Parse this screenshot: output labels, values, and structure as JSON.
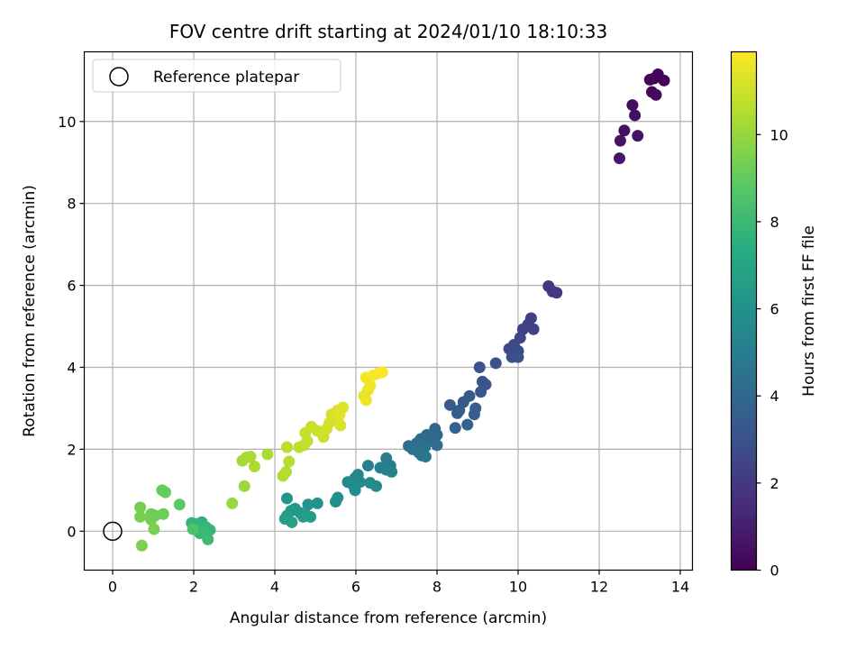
{
  "chart_data": {
    "type": "scatter",
    "title": "FOV centre drift starting at 2024/01/10 18:10:33",
    "xlabel": "Angular distance from reference (arcmin)",
    "ylabel": "Rotation from reference (arcmin)",
    "xlim": [
      -0.7,
      14.3
    ],
    "ylim": [
      -0.95,
      11.7
    ],
    "xticks": [
      0,
      2,
      4,
      6,
      8,
      10,
      12,
      14
    ],
    "yticks": [
      0,
      2,
      4,
      6,
      8,
      10
    ],
    "grid": true,
    "legend": {
      "placement": "top-left",
      "entries": [
        "Reference platepar"
      ]
    },
    "reference_point": {
      "x": 0,
      "y": 0
    },
    "colorbar": {
      "label": "Hours from first FF file",
      "colormap": "viridis",
      "range": [
        0,
        11.9
      ],
      "ticks": [
        0,
        2,
        4,
        6,
        8,
        10
      ]
    },
    "points": [
      {
        "x": 13.35,
        "y": 11.05,
        "c": 0.05
      },
      {
        "x": 13.45,
        "y": 11.15,
        "c": 0.1
      },
      {
        "x": 13.6,
        "y": 11.0,
        "c": 0.15
      },
      {
        "x": 13.25,
        "y": 11.02,
        "c": 0.2
      },
      {
        "x": 13.3,
        "y": 10.72,
        "c": 0.25
      },
      {
        "x": 13.4,
        "y": 10.65,
        "c": 0.3
      },
      {
        "x": 12.82,
        "y": 10.4,
        "c": 0.4
      },
      {
        "x": 12.88,
        "y": 10.15,
        "c": 0.45
      },
      {
        "x": 12.62,
        "y": 9.78,
        "c": 0.55
      },
      {
        "x": 12.95,
        "y": 9.65,
        "c": 0.6
      },
      {
        "x": 12.52,
        "y": 9.53,
        "c": 0.65
      },
      {
        "x": 12.5,
        "y": 9.1,
        "c": 0.75
      },
      {
        "x": 10.75,
        "y": 5.98,
        "c": 1.9
      },
      {
        "x": 10.85,
        "y": 5.85,
        "c": 1.95
      },
      {
        "x": 10.95,
        "y": 5.82,
        "c": 2.0
      },
      {
        "x": 10.32,
        "y": 5.2,
        "c": 2.2
      },
      {
        "x": 10.25,
        "y": 5.05,
        "c": 2.3
      },
      {
        "x": 10.12,
        "y": 4.93,
        "c": 2.35
      },
      {
        "x": 10.38,
        "y": 4.93,
        "c": 2.4
      },
      {
        "x": 10.05,
        "y": 4.72,
        "c": 2.5
      },
      {
        "x": 9.9,
        "y": 4.55,
        "c": 2.6
      },
      {
        "x": 9.78,
        "y": 4.45,
        "c": 2.65
      },
      {
        "x": 10.0,
        "y": 4.4,
        "c": 2.7
      },
      {
        "x": 9.85,
        "y": 4.25,
        "c": 2.8
      },
      {
        "x": 10.0,
        "y": 4.25,
        "c": 2.85
      },
      {
        "x": 9.45,
        "y": 4.1,
        "c": 2.95
      },
      {
        "x": 9.05,
        "y": 4.0,
        "c": 3.0
      },
      {
        "x": 9.12,
        "y": 3.65,
        "c": 3.1
      },
      {
        "x": 9.2,
        "y": 3.58,
        "c": 3.15
      },
      {
        "x": 9.08,
        "y": 3.4,
        "c": 3.2
      },
      {
        "x": 8.8,
        "y": 3.3,
        "c": 3.3
      },
      {
        "x": 8.65,
        "y": 3.15,
        "c": 3.35
      },
      {
        "x": 8.32,
        "y": 3.08,
        "c": 3.4
      },
      {
        "x": 8.55,
        "y": 2.95,
        "c": 3.45
      },
      {
        "x": 8.95,
        "y": 3.0,
        "c": 3.5
      },
      {
        "x": 8.5,
        "y": 2.88,
        "c": 3.55
      },
      {
        "x": 8.92,
        "y": 2.85,
        "c": 3.6
      },
      {
        "x": 8.75,
        "y": 2.6,
        "c": 3.7
      },
      {
        "x": 8.45,
        "y": 2.52,
        "c": 3.8
      },
      {
        "x": 7.95,
        "y": 2.5,
        "c": 3.9
      },
      {
        "x": 8.0,
        "y": 2.35,
        "c": 3.95
      },
      {
        "x": 7.75,
        "y": 2.35,
        "c": 4.0
      },
      {
        "x": 7.6,
        "y": 2.25,
        "c": 4.1
      },
      {
        "x": 7.85,
        "y": 2.2,
        "c": 4.15
      },
      {
        "x": 7.5,
        "y": 2.15,
        "c": 4.2
      },
      {
        "x": 8.0,
        "y": 2.1,
        "c": 4.25
      },
      {
        "x": 7.3,
        "y": 2.08,
        "c": 4.3
      },
      {
        "x": 7.7,
        "y": 2.05,
        "c": 4.35
      },
      {
        "x": 7.4,
        "y": 2.0,
        "c": 4.4
      },
      {
        "x": 7.55,
        "y": 1.92,
        "c": 4.5
      },
      {
        "x": 7.62,
        "y": 1.85,
        "c": 4.55
      },
      {
        "x": 7.72,
        "y": 1.82,
        "c": 4.6
      },
      {
        "x": 6.75,
        "y": 1.78,
        "c": 4.9
      },
      {
        "x": 6.85,
        "y": 1.6,
        "c": 5.0
      },
      {
        "x": 6.3,
        "y": 1.6,
        "c": 5.1
      },
      {
        "x": 6.6,
        "y": 1.55,
        "c": 5.15
      },
      {
        "x": 6.75,
        "y": 1.5,
        "c": 5.2
      },
      {
        "x": 6.88,
        "y": 1.45,
        "c": 5.25
      },
      {
        "x": 6.05,
        "y": 1.38,
        "c": 5.4
      },
      {
        "x": 5.98,
        "y": 1.3,
        "c": 5.45
      },
      {
        "x": 5.8,
        "y": 1.2,
        "c": 5.5
      },
      {
        "x": 6.1,
        "y": 1.2,
        "c": 5.55
      },
      {
        "x": 6.35,
        "y": 1.18,
        "c": 5.6
      },
      {
        "x": 6.5,
        "y": 1.1,
        "c": 5.65
      },
      {
        "x": 5.95,
        "y": 1.1,
        "c": 5.7
      },
      {
        "x": 5.98,
        "y": 1.0,
        "c": 5.75
      },
      {
        "x": 5.55,
        "y": 0.82,
        "c": 5.9
      },
      {
        "x": 5.5,
        "y": 0.72,
        "c": 5.95
      },
      {
        "x": 5.05,
        "y": 0.68,
        "c": 6.05
      },
      {
        "x": 4.82,
        "y": 0.65,
        "c": 6.1
      },
      {
        "x": 4.3,
        "y": 0.8,
        "c": 6.2
      },
      {
        "x": 4.5,
        "y": 0.55,
        "c": 6.3
      },
      {
        "x": 4.4,
        "y": 0.5,
        "c": 6.35
      },
      {
        "x": 4.62,
        "y": 0.45,
        "c": 6.4
      },
      {
        "x": 4.75,
        "y": 0.42,
        "c": 6.45
      },
      {
        "x": 4.3,
        "y": 0.38,
        "c": 6.5
      },
      {
        "x": 4.88,
        "y": 0.35,
        "c": 6.55
      },
      {
        "x": 4.7,
        "y": 0.35,
        "c": 6.6
      },
      {
        "x": 4.25,
        "y": 0.3,
        "c": 6.65
      },
      {
        "x": 4.42,
        "y": 0.22,
        "c": 6.7
      },
      {
        "x": 2.2,
        "y": 0.22,
        "c": 7.6
      },
      {
        "x": 1.95,
        "y": 0.2,
        "c": 7.7
      },
      {
        "x": 2.05,
        "y": 0.18,
        "c": 7.75
      },
      {
        "x": 2.3,
        "y": 0.1,
        "c": 7.8
      },
      {
        "x": 2.1,
        "y": 0.05,
        "c": 7.85
      },
      {
        "x": 2.4,
        "y": 0.03,
        "c": 7.9
      },
      {
        "x": 2.22,
        "y": -0.02,
        "c": 7.95
      },
      {
        "x": 2.15,
        "y": -0.05,
        "c": 8.0
      },
      {
        "x": 2.3,
        "y": -0.08,
        "c": 8.05
      },
      {
        "x": 2.35,
        "y": -0.2,
        "c": 8.1
      },
      {
        "x": 1.98,
        "y": 0.05,
        "c": 8.5
      },
      {
        "x": 1.65,
        "y": 0.65,
        "c": 8.9
      },
      {
        "x": 1.22,
        "y": 1.0,
        "c": 9.0
      },
      {
        "x": 1.3,
        "y": 0.95,
        "c": 9.05
      },
      {
        "x": 1.25,
        "y": 0.42,
        "c": 9.15
      },
      {
        "x": 0.95,
        "y": 0.42,
        "c": 9.2
      },
      {
        "x": 1.05,
        "y": 0.38,
        "c": 9.25
      },
      {
        "x": 0.95,
        "y": 0.28,
        "c": 9.3
      },
      {
        "x": 0.68,
        "y": 0.58,
        "c": 9.35
      },
      {
        "x": 0.68,
        "y": 0.35,
        "c": 9.4
      },
      {
        "x": 1.02,
        "y": 0.05,
        "c": 9.45
      },
      {
        "x": 0.72,
        "y": -0.35,
        "c": 9.5
      },
      {
        "x": 2.95,
        "y": 0.68,
        "c": 10.0
      },
      {
        "x": 3.25,
        "y": 1.1,
        "c": 10.1
      },
      {
        "x": 3.2,
        "y": 1.72,
        "c": 10.2
      },
      {
        "x": 3.3,
        "y": 1.8,
        "c": 10.25
      },
      {
        "x": 3.4,
        "y": 1.82,
        "c": 10.3
      },
      {
        "x": 3.5,
        "y": 1.58,
        "c": 10.35
      },
      {
        "x": 3.82,
        "y": 1.88,
        "c": 10.4
      },
      {
        "x": 4.2,
        "y": 1.35,
        "c": 10.5
      },
      {
        "x": 4.28,
        "y": 1.45,
        "c": 10.55
      },
      {
        "x": 4.35,
        "y": 1.7,
        "c": 10.6
      },
      {
        "x": 4.3,
        "y": 2.05,
        "c": 10.65
      },
      {
        "x": 4.6,
        "y": 2.05,
        "c": 10.7
      },
      {
        "x": 4.72,
        "y": 2.1,
        "c": 10.75
      },
      {
        "x": 4.8,
        "y": 2.2,
        "c": 10.8
      },
      {
        "x": 4.75,
        "y": 2.4,
        "c": 10.85
      },
      {
        "x": 4.9,
        "y": 2.55,
        "c": 10.9
      },
      {
        "x": 5.05,
        "y": 2.45,
        "c": 10.95
      },
      {
        "x": 5.2,
        "y": 2.3,
        "c": 11.0
      },
      {
        "x": 5.28,
        "y": 2.5,
        "c": 11.05
      },
      {
        "x": 5.35,
        "y": 2.65,
        "c": 11.1
      },
      {
        "x": 5.4,
        "y": 2.85,
        "c": 11.15
      },
      {
        "x": 5.55,
        "y": 2.7,
        "c": 11.2
      },
      {
        "x": 5.62,
        "y": 2.58,
        "c": 11.25
      },
      {
        "x": 5.55,
        "y": 2.95,
        "c": 11.3
      },
      {
        "x": 5.68,
        "y": 3.02,
        "c": 11.35
      },
      {
        "x": 5.6,
        "y": 2.85,
        "c": 11.4
      },
      {
        "x": 6.2,
        "y": 3.3,
        "c": 11.5
      },
      {
        "x": 6.3,
        "y": 3.45,
        "c": 11.55
      },
      {
        "x": 6.25,
        "y": 3.2,
        "c": 11.6
      },
      {
        "x": 6.35,
        "y": 3.55,
        "c": 11.65
      },
      {
        "x": 6.25,
        "y": 3.75,
        "c": 11.7
      },
      {
        "x": 6.42,
        "y": 3.8,
        "c": 11.75
      },
      {
        "x": 6.55,
        "y": 3.85,
        "c": 11.8
      },
      {
        "x": 6.65,
        "y": 3.88,
        "c": 11.85
      }
    ]
  }
}
